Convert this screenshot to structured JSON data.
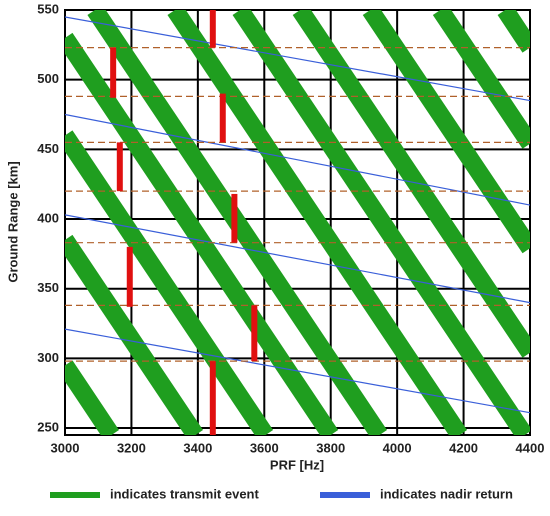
{
  "chart_data": {
    "type": "timing",
    "xlabel": "PRF [Hz]",
    "ylabel": "Ground Range [km]",
    "xlim": [
      3000,
      4400
    ],
    "ylim": [
      245,
      550
    ],
    "xticks": [
      3000,
      3200,
      3400,
      3600,
      3800,
      4000,
      4200,
      4400
    ],
    "yticks": [
      250,
      300,
      350,
      400,
      450,
      500,
      550
    ],
    "grid": true,
    "series": [
      {
        "name": "indicates transmit event",
        "color": "#1f9e1f",
        "segments": [
          {
            "x": [
              3000,
              3800
            ],
            "values": [
              530,
              245
            ]
          },
          {
            "x": [
              3000,
              3604
            ],
            "values": [
              460,
              245
            ]
          },
          {
            "x": [
              3000,
              3393
            ],
            "values": [
              385,
              245
            ]
          },
          {
            "x": [
              3000,
              3140
            ],
            "values": [
              295,
              245
            ]
          },
          {
            "x": [
              3090,
              3947
            ],
            "values": [
              550,
              245
            ]
          },
          {
            "x": [
              3331,
              4188
            ],
            "values": [
              550,
              245
            ]
          },
          {
            "x": [
              3527,
              4384
            ],
            "values": [
              550,
              245
            ]
          },
          {
            "x": [
              3708,
              4400
            ],
            "values": [
              550,
              304
            ]
          },
          {
            "x": [
              3919,
              4400
            ],
            "values": [
              550,
              379
            ]
          },
          {
            "x": [
              4130,
              4400
            ],
            "values": [
              550,
              454
            ]
          },
          {
            "x": [
              4325,
              4400
            ],
            "values": [
              550,
              523
            ]
          }
        ]
      },
      {
        "name": "indicates nadir return",
        "color": "#3a5fd9",
        "segments": [
          {
            "x": [
              3000,
              4400
            ],
            "values": [
              545,
              485
            ]
          },
          {
            "x": [
              3000,
              4400
            ],
            "values": [
              475,
              410
            ]
          },
          {
            "x": [
              3000,
              4400
            ],
            "values": [
              403,
              340
            ]
          },
          {
            "x": [
              3000,
              4400
            ],
            "values": [
              321,
              261
            ]
          }
        ]
      }
    ],
    "red_bars": {
      "color": "#e01010",
      "x": [
        3145,
        3165,
        3195,
        3445,
        3475,
        3510,
        3570,
        3445
      ],
      "low": [
        487,
        420,
        337,
        523,
        455,
        383,
        298,
        245
      ],
      "high": [
        523,
        455,
        380,
        550,
        490,
        418,
        338,
        298
      ]
    },
    "range_lines": {
      "color": "#b0602a",
      "values": [
        523,
        488,
        455,
        420,
        383,
        338,
        298
      ]
    }
  }
}
